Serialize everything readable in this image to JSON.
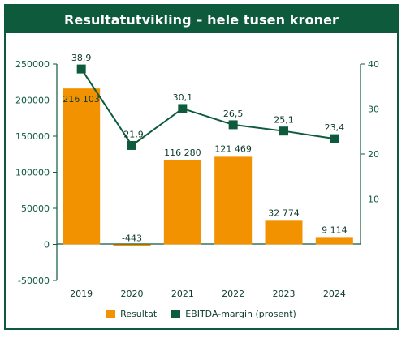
{
  "title": "Resultatutvikling – hele tusen kroner",
  "colors": {
    "frame": "#0d5a3c",
    "bar": "#f39200",
    "line": "#0d5a3c",
    "text": "#0d3b2a"
  },
  "legend": {
    "bar_label": "Resultat",
    "line_label": "EBITDA-margin (prosent)"
  },
  "chart_data": {
    "type": "bar",
    "categories": [
      "2019",
      "2020",
      "2021",
      "2022",
      "2023",
      "2024"
    ],
    "series": [
      {
        "name": "Resultat",
        "type": "bar",
        "axis": "left",
        "values": [
          216103,
          -443,
          116280,
          121469,
          32774,
          9114
        ],
        "labels": [
          "216 103",
          "-443",
          "116 280",
          "121 469",
          "32 774",
          "9 114"
        ]
      },
      {
        "name": "EBITDA-margin (prosent)",
        "type": "line",
        "axis": "right",
        "values": [
          38.9,
          21.9,
          30.1,
          26.5,
          25.1,
          23.4
        ],
        "labels": [
          "38,9",
          "21,9",
          "30,1",
          "26,5",
          "25,1",
          "23,4"
        ]
      }
    ],
    "left_axis": {
      "ylim": [
        -50000,
        250000
      ],
      "ticks": [
        -50000,
        0,
        50000,
        100000,
        150000,
        200000,
        250000
      ]
    },
    "right_axis": {
      "ylim": [
        0,
        40
      ],
      "ticks": [
        10,
        20,
        30,
        40
      ]
    },
    "legend_position": "bottom",
    "grid": false
  }
}
